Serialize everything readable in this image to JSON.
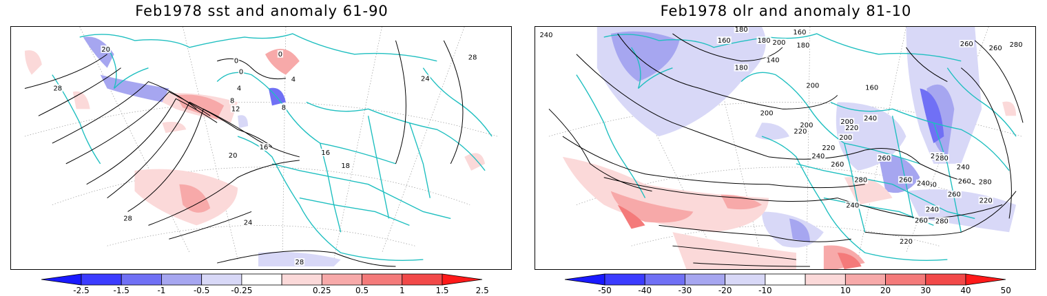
{
  "panels": [
    {
      "title": "Feb1978 sst and anomaly 61-90",
      "colorbar": {
        "labels": [
          "-2.5",
          "-1.5",
          "-1",
          "-0.5",
          "-0.25",
          "0.25",
          "0.5",
          "1",
          "1.5",
          "2.5"
        ],
        "colors": [
          "#1a1aff",
          "#3c3cff",
          "#7070f5",
          "#a6a6f0",
          "#d8d8f7",
          "#ffffff",
          "#fbd9d9",
          "#f7a9a9",
          "#f47a7a",
          "#f24949",
          "#ff1a1a"
        ]
      },
      "contour_labels": [
        "20",
        "28",
        "0",
        "0",
        "0",
        "4",
        "8",
        "12",
        "4",
        "8",
        "16",
        "20",
        "16",
        "18",
        "24",
        "28",
        "24",
        "28",
        "28"
      ]
    },
    {
      "title": "Feb1978 olr and anomaly 81-10",
      "colorbar": {
        "labels": [
          "-50",
          "-40",
          "-30",
          "-20",
          "-10",
          "10",
          "20",
          "30",
          "40",
          "50"
        ],
        "colors": [
          "#1a1aff",
          "#3c3cff",
          "#7070f5",
          "#a6a6f0",
          "#d8d8f7",
          "#ffffff",
          "#fbd9d9",
          "#f7a9a9",
          "#f47a7a",
          "#f24949",
          "#ff1a1a"
        ]
      },
      "contour_labels": [
        "240",
        "180",
        "160",
        "180",
        "160",
        "180",
        "140",
        "200",
        "180",
        "260",
        "260",
        "280",
        "160",
        "200",
        "200",
        "200",
        "220",
        "200",
        "200",
        "220",
        "240",
        "260",
        "220",
        "240",
        "260",
        "260",
        "260",
        "240",
        "280",
        "260",
        "260",
        "280",
        "240",
        "220",
        "260",
        "280",
        "260",
        "240",
        "240",
        "280",
        "220"
      ]
    }
  ]
}
